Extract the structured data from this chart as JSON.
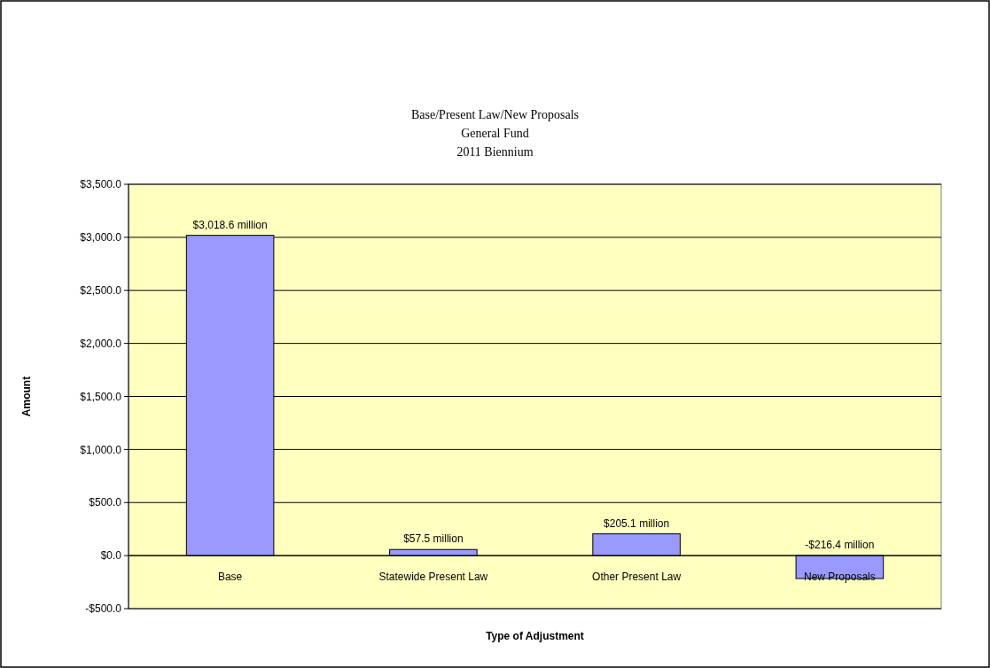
{
  "chart_data": {
    "type": "bar",
    "title": "Base/Present Law/New Proposals",
    "subtitle": "General Fund\n2011 Biennium",
    "xlabel": "Type of Adjustment",
    "ylabel": "Amount",
    "categories": [
      "Base",
      "Statewide Present Law",
      "Other Present Law",
      "New Proposals"
    ],
    "values": [
      3018.6,
      57.5,
      205.1,
      -216.4
    ],
    "value_labels": [
      "$3,018.6 million",
      "$57.5 million",
      "$205.1 million",
      "-$216.4 million"
    ],
    "color": "#9999ff",
    "ylim": [
      -500,
      3500
    ],
    "yticks": [
      {
        "value": -500,
        "label": "-$500.0"
      },
      {
        "value": 0,
        "label": "$0.0"
      },
      {
        "value": 500,
        "label": "$500.0"
      },
      {
        "value": 1000,
        "label": "$1,000.0"
      },
      {
        "value": 1500,
        "label": "$1,500.0"
      },
      {
        "value": 2000,
        "label": "$2,000.0"
      },
      {
        "value": 2500,
        "label": "$2,500.0"
      },
      {
        "value": 3000,
        "label": "$3,000.0"
      },
      {
        "value": 3500,
        "label": "$3,500.0"
      }
    ],
    "grid": "y"
  }
}
